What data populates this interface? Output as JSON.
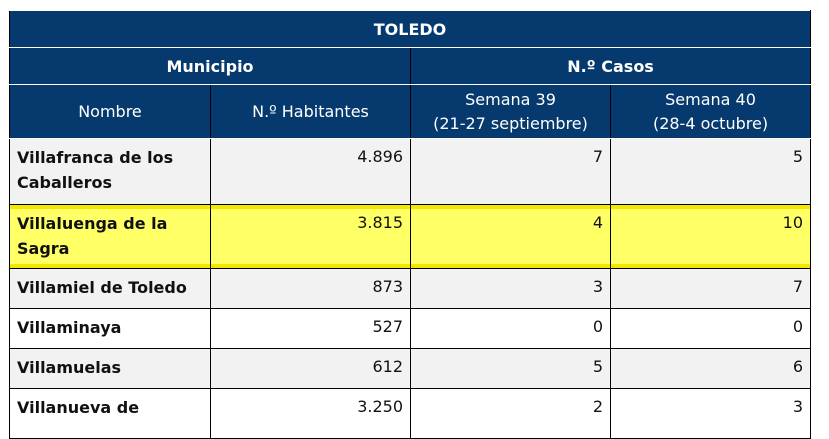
{
  "header": {
    "title": "TOLEDO",
    "group_1": "Municipio",
    "group_2": "N.º Casos"
  },
  "columns": [
    "Nombre",
    "N.º Habitantes",
    "Semana 39\n(21-27 septiembre)",
    "Semana 40\n(28-4 octubre)"
  ],
  "table": {
    "rows": [
      [
        "Villafranca de los Caballeros",
        "4.896",
        "7",
        "5"
      ],
      [
        "Villaluenga de la Sagra",
        "3.815",
        "4",
        "10"
      ],
      [
        "Villamiel de Toledo",
        "873",
        "3",
        "7"
      ],
      [
        "Villaminaya",
        "527",
        "0",
        "0"
      ],
      [
        "Villamuelas",
        "612",
        "5",
        "6"
      ],
      [
        "Villanueva de",
        "3.250",
        "2",
        "3"
      ]
    ],
    "highlighted_row": 1
  }
}
